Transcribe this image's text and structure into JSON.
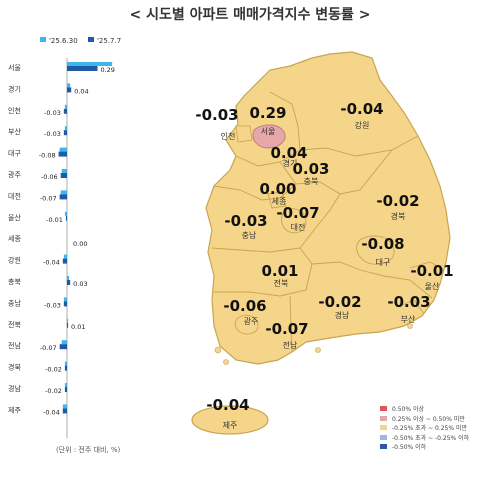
{
  "title": "< 시도별 아파트 매매가격지수 변동률 >",
  "unit_note": "(단위 : 전주 대비, %)",
  "colors": {
    "prev_week": "#3fb6e8",
    "this_week": "#1f5aa6",
    "map_fill": "#f5d58a",
    "map_stroke": "#c9a451",
    "seoul_fill": "#e7a6a8",
    "jeju_fill": "#f5d58a"
  },
  "legend": [
    {
      "label": "0.50% 이상",
      "color": "#e05555"
    },
    {
      "label": "0.25% 이상 ~ 0.50% 미만",
      "color": "#e7a6a8"
    },
    {
      "label": "-0.25% 초과 ~ 0.25% 미만",
      "color": "#f5d58a"
    },
    {
      "label": "-0.50% 초과 ~ -0.25% 이하",
      "color": "#9fb6e0"
    },
    {
      "label": "-0.50% 이하",
      "color": "#2c5aa8"
    }
  ],
  "chart_data": {
    "type": "bar",
    "orientation": "horizontal",
    "series": [
      {
        "name": "'25.6.30",
        "values": [
          null,
          null,
          null,
          null,
          null,
          null,
          null,
          null,
          null,
          null,
          null,
          null,
          null,
          null,
          null,
          null,
          null
        ]
      },
      {
        "name": "'25.7.7",
        "values": [
          0.29,
          0.04,
          -0.03,
          -0.03,
          -0.08,
          -0.06,
          -0.07,
          -0.01,
          0.0,
          -0.04,
          0.03,
          -0.03,
          0.01,
          -0.07,
          -0.02,
          -0.02,
          -0.04
        ]
      }
    ],
    "categories": [
      "서울",
      "경기",
      "인천",
      "부산",
      "대구",
      "광주",
      "대전",
      "울산",
      "세종",
      "강원",
      "충북",
      "충남",
      "전북",
      "전남",
      "경북",
      "경남",
      "제주"
    ],
    "labels": [
      "0.29",
      "0.04",
      "-0.03",
      "-0.03",
      "-0.08",
      "-0.06",
      "-0.07",
      "-0.01",
      "0.00",
      "-0.04",
      "0.03",
      "-0.03",
      "0.01",
      "-0.07",
      "-0.02",
      "-0.02",
      "-0.04"
    ],
    "prev_estimates": [
      0.43,
      0.03,
      -0.02,
      -0.02,
      -0.07,
      -0.05,
      -0.06,
      -0.02,
      0.0,
      -0.03,
      0.02,
      -0.03,
      0.01,
      -0.05,
      -0.02,
      -0.02,
      -0.04
    ]
  },
  "map_labels": [
    {
      "name": "인천",
      "value": "-0.03"
    },
    {
      "name": "서울",
      "value": "0.29"
    },
    {
      "name": "강원",
      "value": "-0.04"
    },
    {
      "name": "경기",
      "value": "0.04"
    },
    {
      "name": "충북",
      "value": "0.03"
    },
    {
      "name": "세종",
      "value": "0.00"
    },
    {
      "name": "경북",
      "value": "-0.02"
    },
    {
      "name": "충남",
      "value": "-0.03"
    },
    {
      "name": "대전",
      "value": "-0.07"
    },
    {
      "name": "대구",
      "value": "-0.08"
    },
    {
      "name": "울산",
      "value": "-0.01"
    },
    {
      "name": "전북",
      "value": "0.01"
    },
    {
      "name": "광주",
      "value": "-0.06"
    },
    {
      "name": "경남",
      "value": "-0.02"
    },
    {
      "name": "부산",
      "value": "-0.03"
    },
    {
      "name": "전남",
      "value": "-0.07"
    },
    {
      "name": "제주",
      "value": "-0.04"
    }
  ]
}
